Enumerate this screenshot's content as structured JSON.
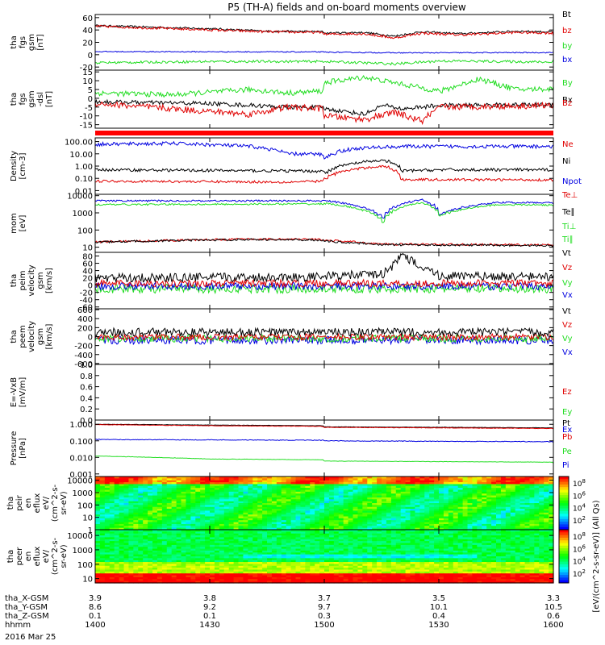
{
  "title": "P5 (TH-A) fields and on-board moments overview",
  "colors": {
    "black": "#000000",
    "red": "#e00000",
    "green": "#22dd22",
    "blue": "#0000e0",
    "bar": "#ff0000",
    "background": "#ffffff"
  },
  "chart_data": [
    {
      "type": "line",
      "panel": "fgs-gsm",
      "ylabel": [
        "tha",
        "fgs",
        "gsm",
        "[nT]"
      ],
      "yticks": [
        60,
        40,
        20,
        0,
        -20
      ],
      "ylim": [
        -25,
        65
      ],
      "legend": [
        {
          "label": "Bt",
          "color": "black"
        },
        {
          "label": "bz",
          "color": "red"
        },
        {
          "label": "by",
          "color": "green"
        },
        {
          "label": "bx",
          "color": "blue"
        }
      ],
      "series": [
        {
          "color": "black",
          "x": [
            1400,
            1430,
            1445,
            1500,
            1510,
            1518,
            1525,
            1535,
            1550,
            1600
          ],
          "y": [
            47,
            42,
            38,
            35,
            36,
            30,
            37,
            34,
            38,
            32
          ],
          "noise": 1.5
        },
        {
          "color": "red",
          "x": [
            1400,
            1430,
            1445,
            1500,
            1510,
            1518,
            1525,
            1535,
            1550,
            1600
          ],
          "y": [
            46,
            40,
            37,
            33,
            34,
            27,
            35,
            32,
            36,
            31
          ],
          "noise": 2
        },
        {
          "color": "blue",
          "x": [
            1400,
            1500,
            1520,
            1600
          ],
          "y": [
            5,
            4,
            3,
            4
          ],
          "noise": 0.8
        },
        {
          "color": "green",
          "x": [
            1400,
            1430,
            1500,
            1518,
            1530,
            1560,
            1600
          ],
          "y": [
            -13,
            -11,
            -11,
            -15,
            -10,
            -12,
            -8
          ],
          "noise": 2
        }
      ]
    },
    {
      "type": "line",
      "panel": "fgs-gsm-dsl",
      "ylabel": [
        "tha",
        "fgs",
        "gsm",
        "-dsl",
        "[nT]"
      ],
      "yticks": [
        15,
        10,
        5,
        0,
        -5,
        -10,
        -15
      ],
      "ylim": [
        -17,
        16
      ],
      "legend": [
        {
          "label": "By",
          "color": "green"
        },
        {
          "label": "Bx",
          "color": "black"
        },
        {
          "label": "Bz",
          "color": "red"
        }
      ],
      "series": [
        {
          "color": "green",
          "x": [
            1400,
            1420,
            1440,
            1450,
            1500,
            1510,
            1520,
            1530,
            1540,
            1550,
            1600
          ],
          "y": [
            3,
            2,
            5,
            3,
            9,
            12,
            8,
            4,
            11,
            5,
            7
          ],
          "noise": 1.5
        },
        {
          "color": "black",
          "x": [
            1400,
            1430,
            1450,
            1500,
            1510,
            1515,
            1520,
            1530,
            1600
          ],
          "y": [
            -2,
            -3,
            -5,
            -6,
            -9,
            -4,
            -6,
            -4,
            -3
          ],
          "noise": 1.2
        },
        {
          "color": "red",
          "x": [
            1400,
            1420,
            1440,
            1450,
            1500,
            1510,
            1518,
            1525,
            1530,
            1560,
            1600
          ],
          "y": [
            -3,
            -6,
            -9,
            -5,
            -10,
            -12,
            -8,
            -13,
            -5,
            -4,
            -4
          ],
          "noise": 1.8
        }
      ]
    },
    {
      "type": "line",
      "panel": "density",
      "ylabel": [
        "Density",
        "[cm-3]"
      ],
      "yscale": "log",
      "yticks": [
        100,
        10,
        1,
        0.1,
        0.01
      ],
      "yticklabels": [
        "100.00",
        "10.00",
        "1.00",
        "0.10",
        "0.01"
      ],
      "ylim": [
        0.005,
        200
      ],
      "legend": [
        {
          "label": "Ne",
          "color": "red"
        },
        {
          "label": "Ni",
          "color": "black"
        },
        {
          "label": "Npot",
          "color": "blue"
        }
      ],
      "series": [
        {
          "color": "blue",
          "x": [
            1400,
            1420,
            1440,
            1450,
            1500,
            1505,
            1510,
            1520,
            1600
          ],
          "y": [
            60,
            70,
            40,
            10,
            5,
            20,
            30,
            40,
            40
          ],
          "noise": 0.15
        },
        {
          "color": "black",
          "x": [
            1400,
            1450,
            1500,
            1515,
            1520,
            1530,
            1600
          ],
          "y": [
            0.5,
            0.4,
            0.3,
            3,
            0.4,
            0.5,
            0.5
          ],
          "noise": 0.12
        },
        {
          "color": "red",
          "x": [
            1400,
            1450,
            1500,
            1515,
            1520,
            1600
          ],
          "y": [
            0.06,
            0.05,
            0.1,
            1,
            0.08,
            0.07
          ],
          "noise": 0.1
        }
      ]
    },
    {
      "type": "line",
      "panel": "mom-temperature",
      "ylabel": [
        "mom",
        "[eV]"
      ],
      "yscale": "log",
      "yticks": [
        10000,
        1000,
        100,
        10
      ],
      "ylim": [
        5,
        12000
      ],
      "legend": [
        {
          "label": "Te⊥",
          "color": "red"
        },
        {
          "label": "Te∥",
          "color": "black"
        },
        {
          "label": "Ti⊥",
          "color": "green"
        },
        {
          "label": "Ti∥",
          "color": "green"
        }
      ],
      "series": [
        {
          "color": "blue",
          "x": [
            1400,
            1500,
            1515,
            1525,
            1530,
            1545,
            1600
          ],
          "y": [
            5000,
            5000,
            500,
            6000,
            800,
            4000,
            3500
          ],
          "noise": 0.05
        },
        {
          "color": "green",
          "x": [
            1400,
            1500,
            1515,
            1525,
            1530,
            1545,
            1600
          ],
          "y": [
            3000,
            3500,
            300,
            4000,
            700,
            3000,
            2500
          ],
          "noise": 0.05
        },
        {
          "color": "red",
          "x": [
            1400,
            1440,
            1500,
            1515,
            1600
          ],
          "y": [
            20,
            30,
            25,
            15,
            12
          ],
          "noise": 0.06
        },
        {
          "color": "black",
          "x": [
            1400,
            1440,
            1500,
            1515,
            1600
          ],
          "y": [
            20,
            28,
            22,
            14,
            11
          ],
          "noise": 0.06
        }
      ]
    },
    {
      "type": "line",
      "panel": "peim-velocity",
      "ylabel": [
        "tha",
        "peim",
        "velocity",
        "gsm",
        "[km/s]"
      ],
      "yticks": [
        80,
        60,
        40,
        20,
        0,
        -20,
        -40,
        -60
      ],
      "ylim": [
        -65,
        90
      ],
      "legend": [
        {
          "label": "Vt",
          "color": "black"
        },
        {
          "label": "Vz",
          "color": "red"
        },
        {
          "label": "Vy",
          "color": "green"
        },
        {
          "label": "Vx",
          "color": "blue"
        }
      ],
      "series": [
        {
          "color": "green",
          "x": [
            1400,
            1600
          ],
          "y": [
            -10,
            -10
          ],
          "noise": 12
        },
        {
          "color": "blue",
          "x": [
            1400,
            1600
          ],
          "y": [
            -3,
            -3
          ],
          "noise": 10
        },
        {
          "color": "red",
          "x": [
            1400,
            1600
          ],
          "y": [
            5,
            5
          ],
          "noise": 10
        },
        {
          "color": "black",
          "x": [
            1400,
            1500,
            1515,
            1520,
            1530,
            1600
          ],
          "y": [
            20,
            25,
            30,
            80,
            25,
            20
          ],
          "noise": 12
        }
      ]
    },
    {
      "type": "line",
      "panel": "peem-velocity",
      "ylabel": [
        "tha",
        "peem",
        "velocity",
        "gsm",
        "[km/s]"
      ],
      "yticks": [
        600,
        400,
        200,
        0,
        -200,
        -400,
        -600
      ],
      "ylim": [
        -620,
        620
      ],
      "legend": [
        {
          "label": "Vt",
          "color": "black"
        },
        {
          "label": "Vz",
          "color": "red"
        },
        {
          "label": "Vy",
          "color": "green"
        },
        {
          "label": "Vx",
          "color": "blue"
        }
      ],
      "series": [
        {
          "color": "blue",
          "x": [
            1400,
            1600
          ],
          "y": [
            -80,
            -80
          ],
          "noise": 90
        },
        {
          "color": "green",
          "x": [
            1400,
            1600
          ],
          "y": [
            -40,
            -40
          ],
          "noise": 80
        },
        {
          "color": "red",
          "x": [
            1400,
            1600
          ],
          "y": [
            -10,
            -10
          ],
          "noise": 70
        },
        {
          "color": "black",
          "x": [
            1400,
            1600
          ],
          "y": [
            100,
            100
          ],
          "noise": 90
        }
      ]
    },
    {
      "type": "line",
      "panel": "e-field",
      "ylabel": [
        "E=-VxB",
        "[mV/m]"
      ],
      "yticks": [
        1.0,
        0.8,
        0.6,
        0.4,
        0.2,
        0.0
      ],
      "yticklabels": [
        "1.0",
        "0.8",
        "0.6",
        "0.4",
        "0.2",
        "0.0"
      ],
      "ylim": [
        0,
        1
      ],
      "legend": [
        {
          "label": "Ez",
          "color": "red"
        },
        {
          "label": "Ey",
          "color": "green"
        },
        {
          "label": "Ex",
          "color": "blue"
        }
      ],
      "series": []
    },
    {
      "type": "line",
      "panel": "pressure",
      "ylabel": [
        "Pressure",
        "[nPa]"
      ],
      "yscale": "log",
      "yticks": [
        1,
        0.1,
        0.01,
        0.001
      ],
      "yticklabels": [
        "1.000",
        "0.100",
        "0.010",
        "0.001"
      ],
      "ylim": [
        0.0007,
        1.8
      ],
      "legend": [
        {
          "label": "Pt",
          "color": "black"
        },
        {
          "label": "Pb",
          "color": "red"
        },
        {
          "label": "Pe",
          "color": "green"
        },
        {
          "label": "Pi",
          "color": "blue"
        }
      ],
      "series": [
        {
          "color": "black",
          "x": [
            1400,
            1430,
            1500,
            1600
          ],
          "y": [
            1.0,
            0.9,
            0.7,
            0.55
          ],
          "noise": 0.01
        },
        {
          "color": "red",
          "x": [
            1400,
            1430,
            1500,
            1600
          ],
          "y": [
            0.95,
            0.82,
            0.65,
            0.5
          ],
          "noise": 0.015
        },
        {
          "color": "blue",
          "x": [
            1400,
            1500,
            1600
          ],
          "y": [
            0.12,
            0.1,
            0.08
          ],
          "noise": 0.02
        },
        {
          "color": "green",
          "x": [
            1400,
            1430,
            1500,
            1600
          ],
          "y": [
            0.012,
            0.008,
            0.006,
            0.0045
          ],
          "noise": 0.01
        }
      ]
    },
    {
      "type": "heatmap",
      "panel": "peir-en-eflux",
      "ylabel": [
        "tha",
        "peir",
        "en",
        "eflux",
        "eV/",
        "(cm^2-s-",
        "sr-eV)"
      ],
      "yscale": "log",
      "yticks": [
        10000,
        1000,
        100,
        10,
        1
      ],
      "ylim": [
        1,
        20000
      ],
      "colorbar": {
        "label": "eV/(cm^2-s-sr-eV)",
        "tick_exponents": [
          8,
          6,
          4,
          2
        ]
      }
    },
    {
      "type": "heatmap",
      "panel": "peer-en-eflux",
      "ylabel": [
        "tha",
        "peer",
        "en",
        "eflux",
        "eV/",
        "(cm^2-s-",
        "sr-eV)"
      ],
      "yscale": "log",
      "yticks": [
        10000,
        1000,
        100,
        10
      ],
      "ylim": [
        5,
        25000
      ],
      "colorbar": {
        "label": "eV/(cm^2-s-sr-eV)",
        "tick_exponents": [
          8,
          6,
          4,
          2
        ]
      }
    }
  ],
  "colorbar_caption": "[eV/(cm^2-s-sr-eV)] (All Qs)",
  "xaxis": {
    "rows": [
      {
        "label": "tha_X-GSM",
        "values": [
          "3.9",
          "3.8",
          "3.7",
          "3.5",
          "3.3"
        ]
      },
      {
        "label": "tha_Y-GSM",
        "values": [
          "8.6",
          "9.2",
          "9.7",
          "10.1",
          "10.5"
        ]
      },
      {
        "label": "tha_Z-GSM",
        "values": [
          "0.1",
          "0.1",
          "0.3",
          "0.4",
          "0.6"
        ]
      },
      {
        "label": "hhmm",
        "values": [
          "1400",
          "1430",
          "1500",
          "1530",
          "1600"
        ]
      }
    ],
    "tick_times": [
      1400,
      1430,
      1500,
      1530,
      1600
    ],
    "date": "2016 Mar 25"
  }
}
